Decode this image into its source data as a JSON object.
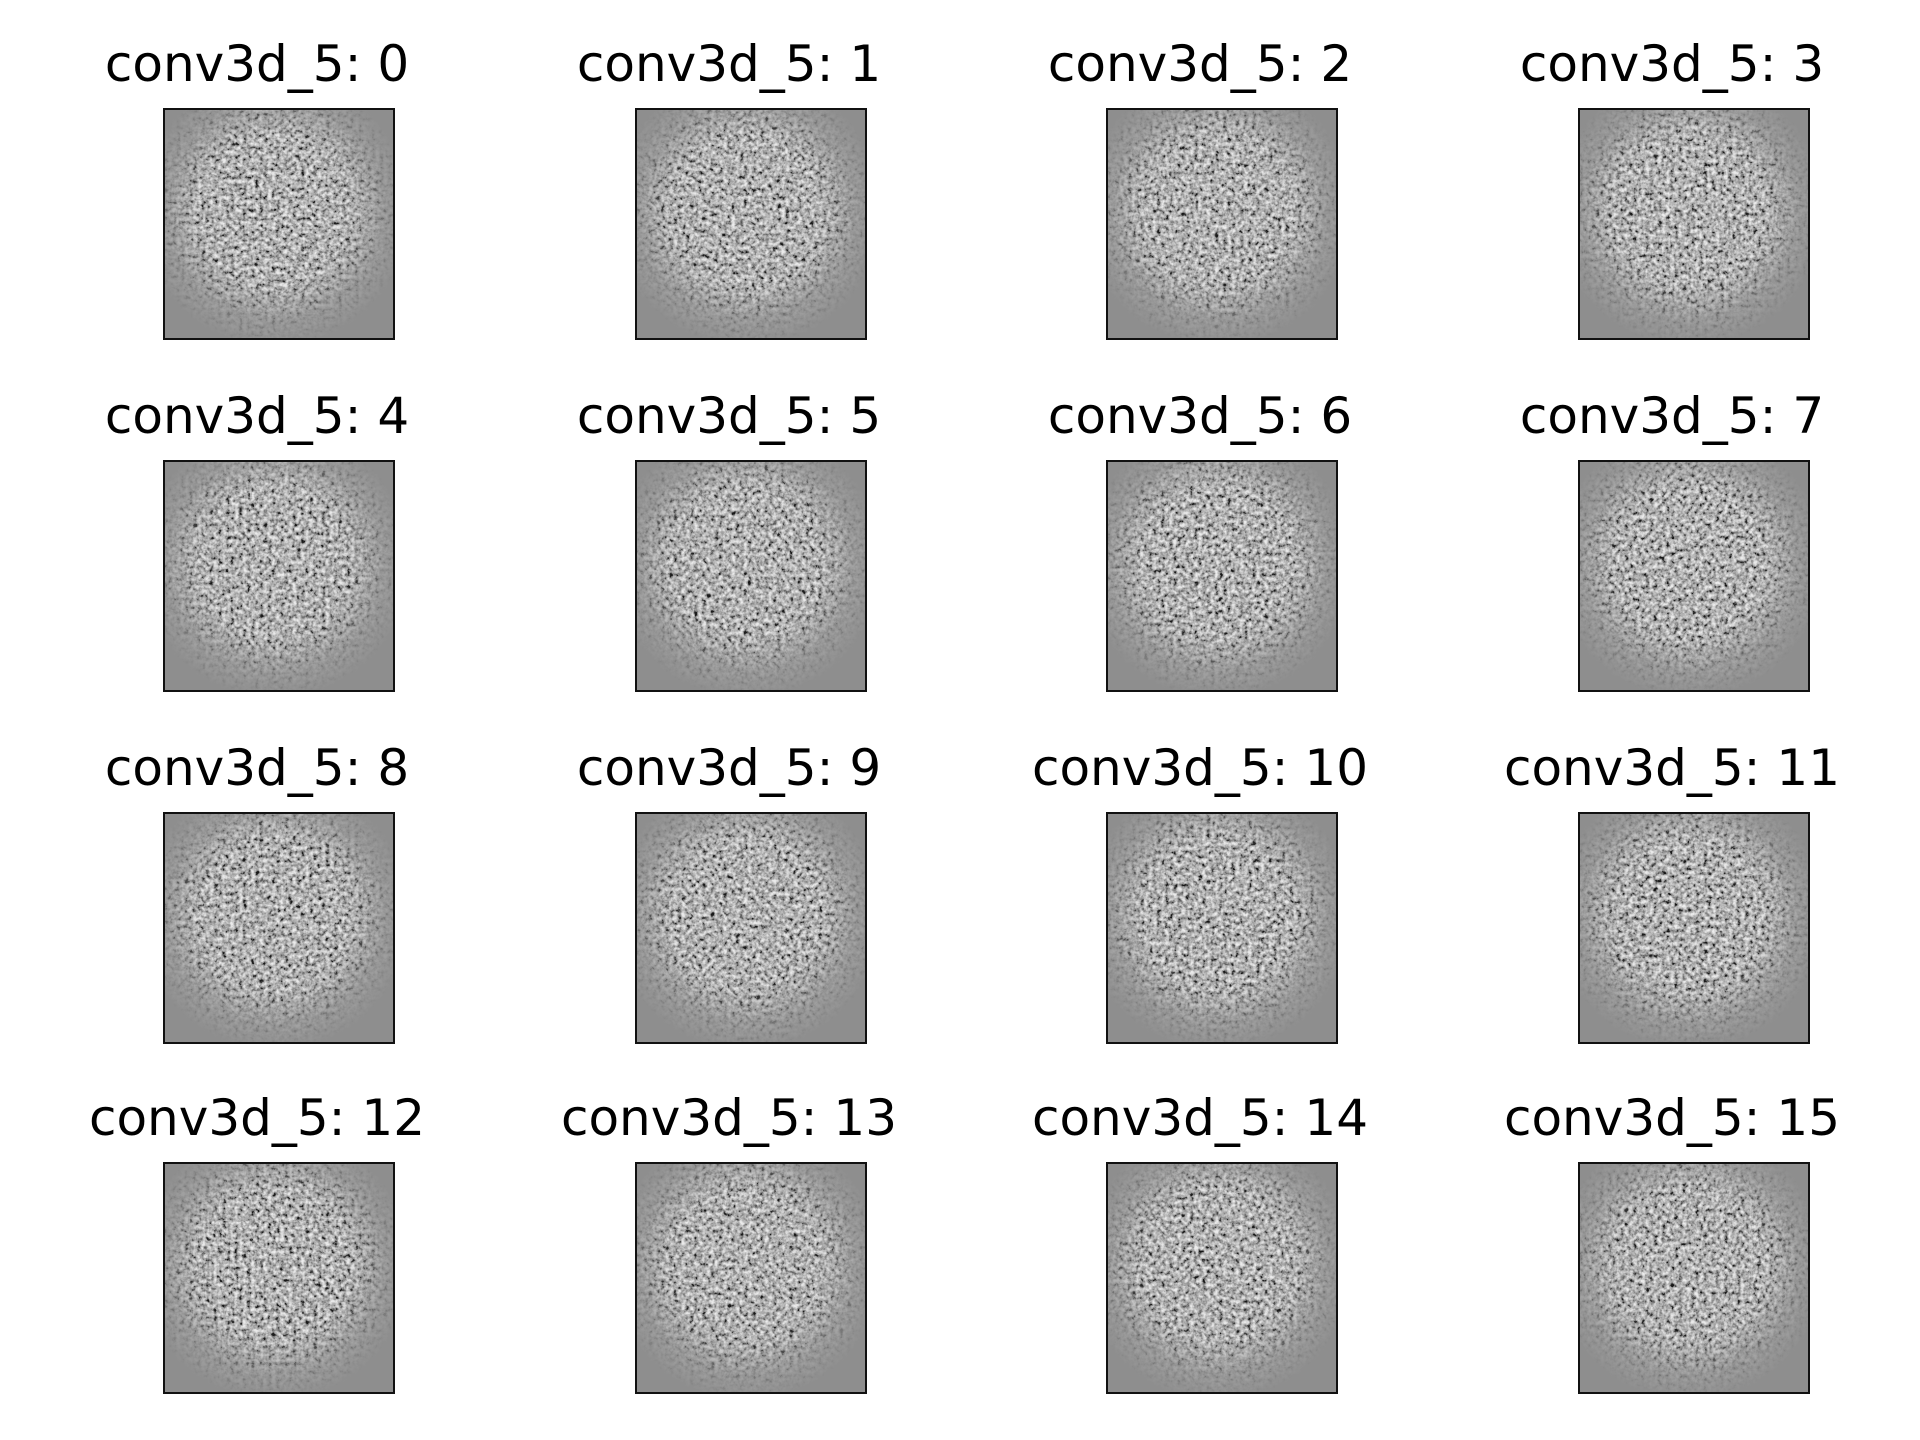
{
  "colors": {
    "background": "#ffffff",
    "frame": "#111111",
    "image_base": "#8e8e8e",
    "text": "#000000"
  },
  "panels": [
    {
      "title": "conv3d_5: 0"
    },
    {
      "title": "conv3d_5: 1"
    },
    {
      "title": "conv3d_5: 2"
    },
    {
      "title": "conv3d_5: 3"
    },
    {
      "title": "conv3d_5: 4"
    },
    {
      "title": "conv3d_5: 5"
    },
    {
      "title": "conv3d_5: 6"
    },
    {
      "title": "conv3d_5: 7"
    },
    {
      "title": "conv3d_5: 8"
    },
    {
      "title": "conv3d_5: 9"
    },
    {
      "title": "conv3d_5: 10"
    },
    {
      "title": "conv3d_5: 11"
    },
    {
      "title": "conv3d_5: 12"
    },
    {
      "title": "conv3d_5: 13"
    },
    {
      "title": "conv3d_5: 14"
    },
    {
      "title": "conv3d_5: 15"
    }
  ]
}
